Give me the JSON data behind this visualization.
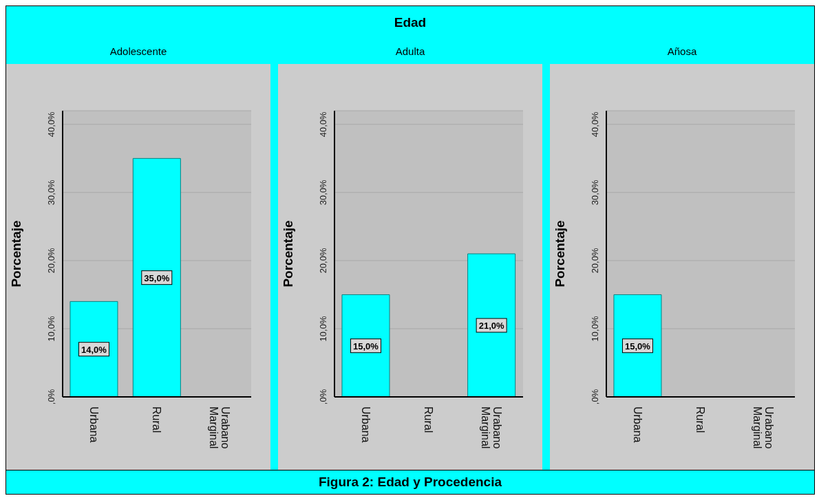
{
  "chart_data": [
    {
      "type": "bar",
      "title": "Adolescente",
      "ylabel": "Porcentaje",
      "categories": [
        "Urbana",
        "Rural",
        "Urabano Marginal"
      ],
      "values": [
        14,
        35,
        null
      ],
      "value_labels": [
        "14,0%",
        "35,0%",
        null
      ],
      "color": "#00ffff",
      "ylim": [
        0,
        42
      ],
      "yticks": [
        {
          "value": 0,
          "label": ",0%"
        },
        {
          "value": 10,
          "label": "10,0%"
        },
        {
          "value": 20,
          "label": "20,0%"
        },
        {
          "value": 30,
          "label": "30,0%"
        },
        {
          "value": 40,
          "label": "40,0%"
        }
      ],
      "grid": "y",
      "annotations": [
        "Edad",
        "Figura 2: Edad y Procedencia"
      ]
    },
    {
      "type": "bar",
      "title": "Adulta",
      "ylabel": "Porcentaje",
      "categories": [
        "Urbana",
        "Rural",
        "Urabano Marginal"
      ],
      "values": [
        15,
        null,
        21
      ],
      "value_labels": [
        "15,0%",
        null,
        "21,0%"
      ],
      "color": "#00ffff",
      "ylim": [
        0,
        42
      ],
      "yticks": [
        {
          "value": 0,
          "label": ",0%"
        },
        {
          "value": 10,
          "label": "10,0%"
        },
        {
          "value": 20,
          "label": "20,0%"
        },
        {
          "value": 30,
          "label": "30,0%"
        },
        {
          "value": 40,
          "label": "40,0%"
        }
      ],
      "grid": "y"
    },
    {
      "type": "bar",
      "title": "Añosa",
      "ylabel": "Porcentaje",
      "categories": [
        "Urbana",
        "Rural",
        "Urabano Marginal"
      ],
      "values": [
        15,
        null,
        null
      ],
      "value_labels": [
        "15,0%",
        null,
        null
      ],
      "color": "#00ffff",
      "ylim": [
        0,
        42
      ],
      "yticks": [
        {
          "value": 0,
          "label": ",0%"
        },
        {
          "value": 10,
          "label": "10,0%"
        },
        {
          "value": 20,
          "label": "20,0%"
        },
        {
          "value": 30,
          "label": "30,0%"
        },
        {
          "value": 40,
          "label": "40,0%"
        }
      ],
      "grid": "y"
    }
  ]
}
